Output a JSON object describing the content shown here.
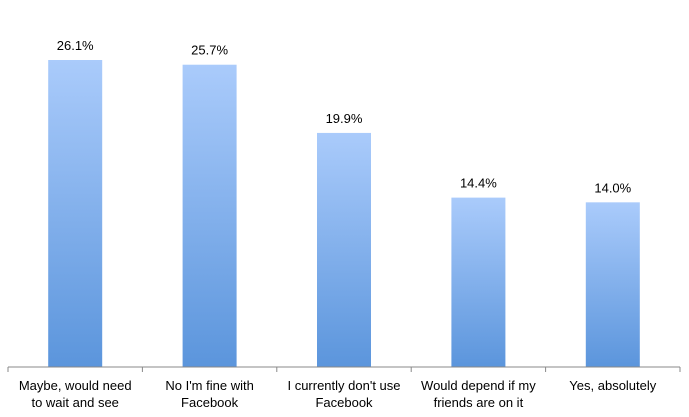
{
  "chart_data": {
    "type": "bar",
    "categories": [
      "Maybe, would need to wait and see",
      "No I'm fine with Facebook",
      "I currently don't use Facebook",
      "Would depend if my friends are on it",
      "Yes, absolutely"
    ],
    "values": [
      26.1,
      25.7,
      19.9,
      14.4,
      14.0
    ],
    "value_labels": [
      "26.1%",
      "25.7%",
      "19.9%",
      "14.4%",
      "14.0%"
    ],
    "color": "#5b95dc"
  }
}
